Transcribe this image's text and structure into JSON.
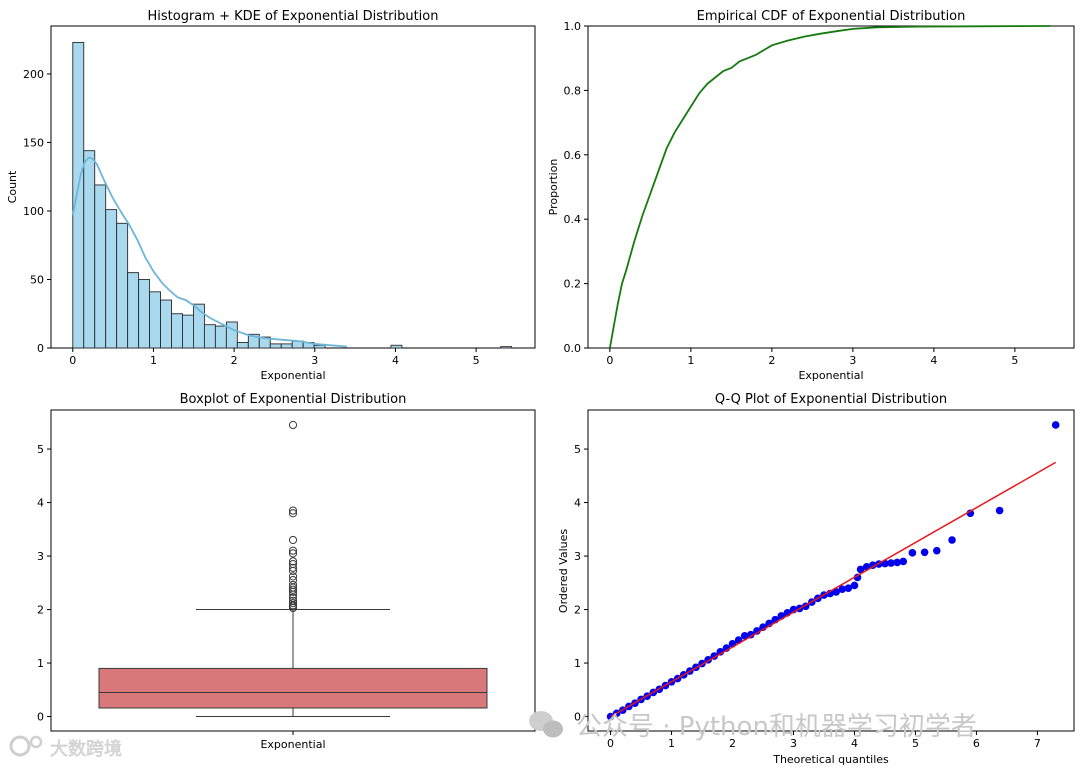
{
  "chart_data": [
    {
      "type": "histogram",
      "title": "Histogram + KDE of Exponential Distribution",
      "xlabel": "Exponential",
      "ylabel": "Count",
      "xlim": [
        -0.27,
        5.73
      ],
      "ylim": [
        0,
        235
      ],
      "xticks": [
        "0",
        "1",
        "2",
        "3",
        "4",
        "5"
      ],
      "yticks": [
        "0",
        "50",
        "100",
        "150",
        "200"
      ],
      "bin_start": 0.0,
      "bin_width": 0.136,
      "counts": [
        223,
        144,
        119,
        101,
        91,
        55,
        50,
        41,
        35,
        25,
        24,
        32,
        17,
        16,
        19,
        4,
        10,
        8,
        3,
        3,
        5,
        4,
        2,
        0,
        0,
        0,
        0,
        0,
        0,
        2,
        0,
        0,
        0,
        0,
        0,
        0,
        0,
        0,
        0,
        1
      ],
      "kde": {
        "x": [
          0,
          0.05,
          0.1,
          0.15,
          0.2,
          0.25,
          0.3,
          0.4,
          0.5,
          0.6,
          0.7,
          0.8,
          0.9,
          1.0,
          1.1,
          1.2,
          1.3,
          1.4,
          1.5,
          1.6,
          1.7,
          1.8,
          1.9,
          2.0,
          2.2,
          2.4,
          2.6,
          2.8,
          3.0,
          3.2,
          3.4
        ],
        "y": [
          97,
          112,
          127,
          136,
          139,
          138,
          134,
          121,
          109,
          99,
          90,
          79,
          66,
          56,
          48,
          42,
          37,
          35,
          31,
          26,
          22,
          19,
          16,
          13,
          9,
          7,
          6,
          5,
          3,
          2,
          1
        ]
      },
      "bar_color": "#a9d9ee",
      "kde_color": "#6cb6d9"
    },
    {
      "type": "line",
      "title": "Empirical CDF of Exponential Distribution",
      "xlabel": "Exponential",
      "ylabel": "Proportion",
      "xlim": [
        -0.27,
        5.73
      ],
      "ylim": [
        0,
        1
      ],
      "xticks": [
        "0",
        "1",
        "2",
        "3",
        "4",
        "5"
      ],
      "yticks": [
        "0.0",
        "0.2",
        "0.4",
        "0.6",
        "0.8",
        "1.0"
      ],
      "x": [
        0,
        0.05,
        0.1,
        0.15,
        0.2,
        0.3,
        0.4,
        0.5,
        0.6,
        0.7,
        0.8,
        0.9,
        1.0,
        1.1,
        1.2,
        1.3,
        1.4,
        1.5,
        1.6,
        1.7,
        1.8,
        1.9,
        2.0,
        2.2,
        2.4,
        2.6,
        2.8,
        3.0,
        3.3,
        3.8,
        4.5,
        5.44
      ],
      "y": [
        0,
        0.07,
        0.14,
        0.2,
        0.24,
        0.33,
        0.41,
        0.48,
        0.55,
        0.62,
        0.67,
        0.71,
        0.75,
        0.79,
        0.82,
        0.84,
        0.86,
        0.87,
        0.89,
        0.9,
        0.91,
        0.925,
        0.94,
        0.955,
        0.967,
        0.976,
        0.984,
        0.991,
        0.996,
        0.998,
        0.999,
        1.0
      ],
      "color": "#157a0f"
    },
    {
      "type": "box",
      "title": "Boxplot of Exponential Distribution",
      "xlabel": "Exponential",
      "ylim": [
        -0.27,
        5.73
      ],
      "yticks": [
        "0",
        "1",
        "2",
        "3",
        "4",
        "5"
      ],
      "whisker_low": 0.0,
      "q1": 0.16,
      "median": 0.45,
      "q3": 0.9,
      "whisker_high": 2.0,
      "outliers": [
        2.03,
        2.06,
        2.08,
        2.12,
        2.16,
        2.22,
        2.28,
        2.33,
        2.37,
        2.41,
        2.46,
        2.55,
        2.62,
        2.72,
        2.78,
        2.85,
        2.9,
        3.05,
        3.1,
        3.3,
        3.8,
        3.85,
        5.45
      ],
      "color": "#d9787a"
    },
    {
      "type": "scatter",
      "title": "Q-Q Plot of Exponential Distribution",
      "xlabel": "Theoretical quantiles",
      "ylabel": "Ordered Values",
      "xlim": [
        -0.37,
        7.6
      ],
      "ylim": [
        -0.27,
        5.73
      ],
      "xticks": [
        "0",
        "1",
        "2",
        "3",
        "4",
        "5",
        "6",
        "7"
      ],
      "yticks": [
        "0",
        "1",
        "2",
        "3",
        "4",
        "5"
      ],
      "fit_line": {
        "x": [
          0,
          7.3
        ],
        "y": [
          0,
          4.75
        ]
      },
      "points_x": [
        0,
        0.1,
        0.2,
        0.3,
        0.4,
        0.5,
        0.6,
        0.7,
        0.8,
        0.9,
        1.0,
        1.1,
        1.2,
        1.3,
        1.4,
        1.5,
        1.6,
        1.7,
        1.8,
        1.9,
        2.0,
        2.1,
        2.2,
        2.3,
        2.4,
        2.5,
        2.6,
        2.7,
        2.8,
        2.9,
        3.0,
        3.1,
        3.2,
        3.3,
        3.4,
        3.5,
        3.6,
        3.7,
        3.8,
        3.9,
        4.0,
        4.05,
        4.1,
        4.2,
        4.3,
        4.4,
        4.5,
        4.6,
        4.7,
        4.8,
        4.95,
        5.15,
        5.35,
        5.6,
        5.9,
        6.38,
        7.3
      ],
      "points_y": [
        0,
        0.06,
        0.12,
        0.19,
        0.25,
        0.32,
        0.38,
        0.45,
        0.51,
        0.58,
        0.65,
        0.71,
        0.78,
        0.85,
        0.92,
        0.99,
        1.06,
        1.13,
        1.21,
        1.28,
        1.36,
        1.43,
        1.51,
        1.53,
        1.6,
        1.67,
        1.74,
        1.81,
        1.88,
        1.94,
        2.0,
        2.02,
        2.06,
        2.14,
        2.21,
        2.27,
        2.3,
        2.33,
        2.38,
        2.4,
        2.45,
        2.6,
        2.75,
        2.8,
        2.83,
        2.85,
        2.86,
        2.87,
        2.88,
        2.9,
        3.06,
        3.07,
        3.1,
        3.3,
        3.8,
        3.85,
        5.45
      ],
      "point_color": "#0000ee",
      "line_color": "#e8161b"
    }
  ],
  "watermarks": {
    "main": "公众号 · Python和机器学习初学者",
    "corner": "大数跨境"
  }
}
